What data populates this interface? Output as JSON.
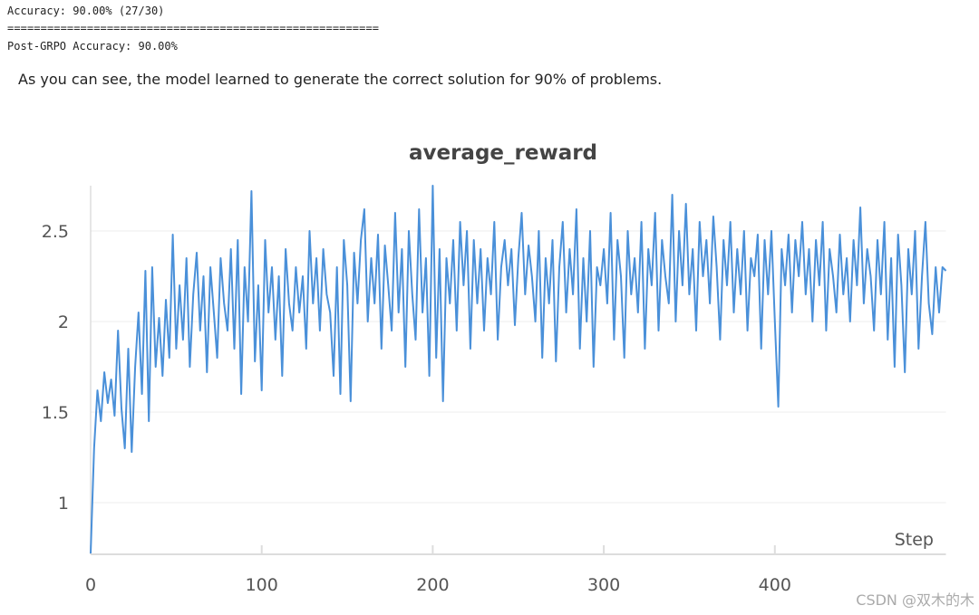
{
  "log_lines": [
    "Accuracy: 90.00% (27/30)",
    "========================================================",
    "Post-GRPO Accuracy: 90.00%"
  ],
  "paragraph": "As you can see, the model learned to generate the correct solution for 90% of problems.",
  "watermark": "CSDN @双木的木",
  "chart_data": {
    "type": "line",
    "title": "average_reward",
    "x_label": "Step",
    "x": [
      0,
      2,
      4,
      6,
      8,
      10,
      12,
      14,
      16,
      18,
      20,
      22,
      24,
      26,
      28,
      30,
      32,
      34,
      36,
      38,
      40,
      42,
      44,
      46,
      48,
      50,
      52,
      54,
      56,
      58,
      60,
      62,
      64,
      66,
      68,
      70,
      72,
      74,
      76,
      78,
      80,
      82,
      84,
      86,
      88,
      90,
      92,
      94,
      96,
      98,
      100,
      102,
      104,
      106,
      108,
      110,
      112,
      114,
      116,
      118,
      120,
      122,
      124,
      126,
      128,
      130,
      132,
      134,
      136,
      138,
      140,
      142,
      144,
      146,
      148,
      150,
      152,
      154,
      156,
      158,
      160,
      162,
      164,
      166,
      168,
      170,
      172,
      174,
      176,
      178,
      180,
      182,
      184,
      186,
      188,
      190,
      192,
      194,
      196,
      198,
      200,
      202,
      204,
      206,
      208,
      210,
      212,
      214,
      216,
      218,
      220,
      222,
      224,
      226,
      228,
      230,
      232,
      234,
      236,
      238,
      240,
      242,
      244,
      246,
      248,
      250,
      252,
      254,
      256,
      258,
      260,
      262,
      264,
      266,
      268,
      270,
      272,
      274,
      276,
      278,
      280,
      282,
      284,
      286,
      288,
      290,
      292,
      294,
      296,
      298,
      300,
      302,
      304,
      306,
      308,
      310,
      312,
      314,
      316,
      318,
      320,
      322,
      324,
      326,
      328,
      330,
      332,
      334,
      336,
      338,
      340,
      342,
      344,
      346,
      348,
      350,
      352,
      354,
      356,
      358,
      360,
      362,
      364,
      366,
      368,
      370,
      372,
      374,
      376,
      378,
      380,
      382,
      384,
      386,
      388,
      390,
      392,
      394,
      396,
      398,
      400,
      402,
      404,
      406,
      408,
      410,
      412,
      414,
      416,
      418,
      420,
      422,
      424,
      426,
      428,
      430,
      432,
      434,
      436,
      438,
      440,
      442,
      444,
      446,
      448,
      450,
      452,
      454,
      456,
      458,
      460,
      462,
      464,
      466,
      468,
      470,
      472,
      474,
      476,
      478,
      480,
      482,
      484,
      486,
      488,
      490,
      492,
      494,
      496,
      498,
      500
    ],
    "series": [
      {
        "name": "average_reward",
        "color": "#4a90d9",
        "values": [
          0.72,
          1.3,
          1.62,
          1.45,
          1.72,
          1.55,
          1.68,
          1.48,
          1.95,
          1.52,
          1.3,
          1.85,
          1.28,
          1.75,
          2.05,
          1.6,
          2.28,
          1.45,
          2.3,
          1.75,
          2.02,
          1.7,
          2.12,
          1.8,
          2.48,
          1.85,
          2.2,
          1.9,
          2.35,
          1.75,
          2.15,
          2.38,
          1.95,
          2.25,
          1.72,
          2.3,
          2.05,
          1.8,
          2.35,
          2.1,
          1.95,
          2.4,
          1.85,
          2.45,
          1.6,
          2.3,
          2.0,
          2.72,
          1.78,
          2.2,
          1.62,
          2.45,
          2.05,
          2.3,
          1.9,
          2.25,
          1.7,
          2.4,
          2.1,
          1.95,
          2.3,
          2.05,
          2.25,
          1.85,
          2.5,
          2.1,
          2.35,
          1.95,
          2.4,
          2.15,
          2.05,
          1.7,
          2.3,
          1.6,
          2.45,
          2.2,
          1.56,
          2.38,
          2.1,
          2.45,
          2.62,
          2.0,
          2.35,
          2.1,
          2.48,
          1.85,
          2.42,
          2.2,
          1.95,
          2.6,
          2.05,
          2.4,
          1.75,
          2.5,
          2.15,
          1.9,
          2.62,
          2.05,
          2.35,
          1.7,
          2.75,
          1.8,
          2.4,
          1.56,
          2.35,
          2.1,
          2.45,
          1.95,
          2.55,
          2.2,
          2.5,
          1.85,
          2.45,
          2.1,
          2.4,
          1.95,
          2.35,
          2.15,
          2.55,
          1.9,
          2.3,
          2.45,
          2.2,
          2.4,
          1.98,
          2.35,
          2.6,
          2.15,
          2.42,
          2.25,
          2.0,
          2.5,
          1.8,
          2.35,
          2.1,
          2.45,
          1.78,
          2.3,
          2.55,
          2.05,
          2.4,
          2.15,
          2.62,
          1.85,
          2.35,
          2.0,
          2.5,
          1.75,
          2.3,
          2.2,
          2.4,
          2.1,
          2.6,
          1.9,
          2.45,
          2.25,
          1.8,
          2.5,
          2.15,
          2.35,
          2.05,
          2.55,
          1.85,
          2.4,
          2.2,
          2.6,
          1.95,
          2.45,
          2.25,
          2.1,
          2.7,
          2.0,
          2.5,
          2.2,
          2.65,
          2.15,
          2.4,
          1.95,
          2.55,
          2.25,
          2.45,
          2.1,
          2.58,
          2.3,
          1.9,
          2.45,
          2.2,
          2.55,
          2.05,
          2.4,
          2.15,
          2.5,
          1.95,
          2.35,
          2.25,
          2.48,
          1.85,
          2.45,
          2.15,
          2.5,
          2.0,
          1.53,
          2.4,
          2.2,
          2.48,
          2.05,
          2.45,
          2.25,
          2.55,
          2.15,
          2.4,
          2.0,
          2.45,
          2.2,
          2.55,
          1.95,
          2.4,
          2.25,
          2.05,
          2.48,
          2.15,
          2.35,
          2.0,
          2.45,
          2.2,
          2.63,
          2.1,
          2.4,
          2.25,
          1.95,
          2.45,
          2.15,
          2.55,
          1.9,
          2.35,
          1.75,
          2.48,
          2.2,
          1.72,
          2.4,
          2.15,
          2.5,
          1.85,
          2.25,
          2.55,
          2.1,
          1.93,
          2.3,
          2.05,
          2.3,
          2.28
        ]
      }
    ],
    "xlim": [
      0,
      500
    ],
    "ylim": [
      0.715,
      2.75
    ],
    "xticks": [
      0,
      100,
      200,
      300,
      400
    ],
    "yticks": [
      1,
      1.5,
      2,
      2.5
    ],
    "grid": true
  }
}
